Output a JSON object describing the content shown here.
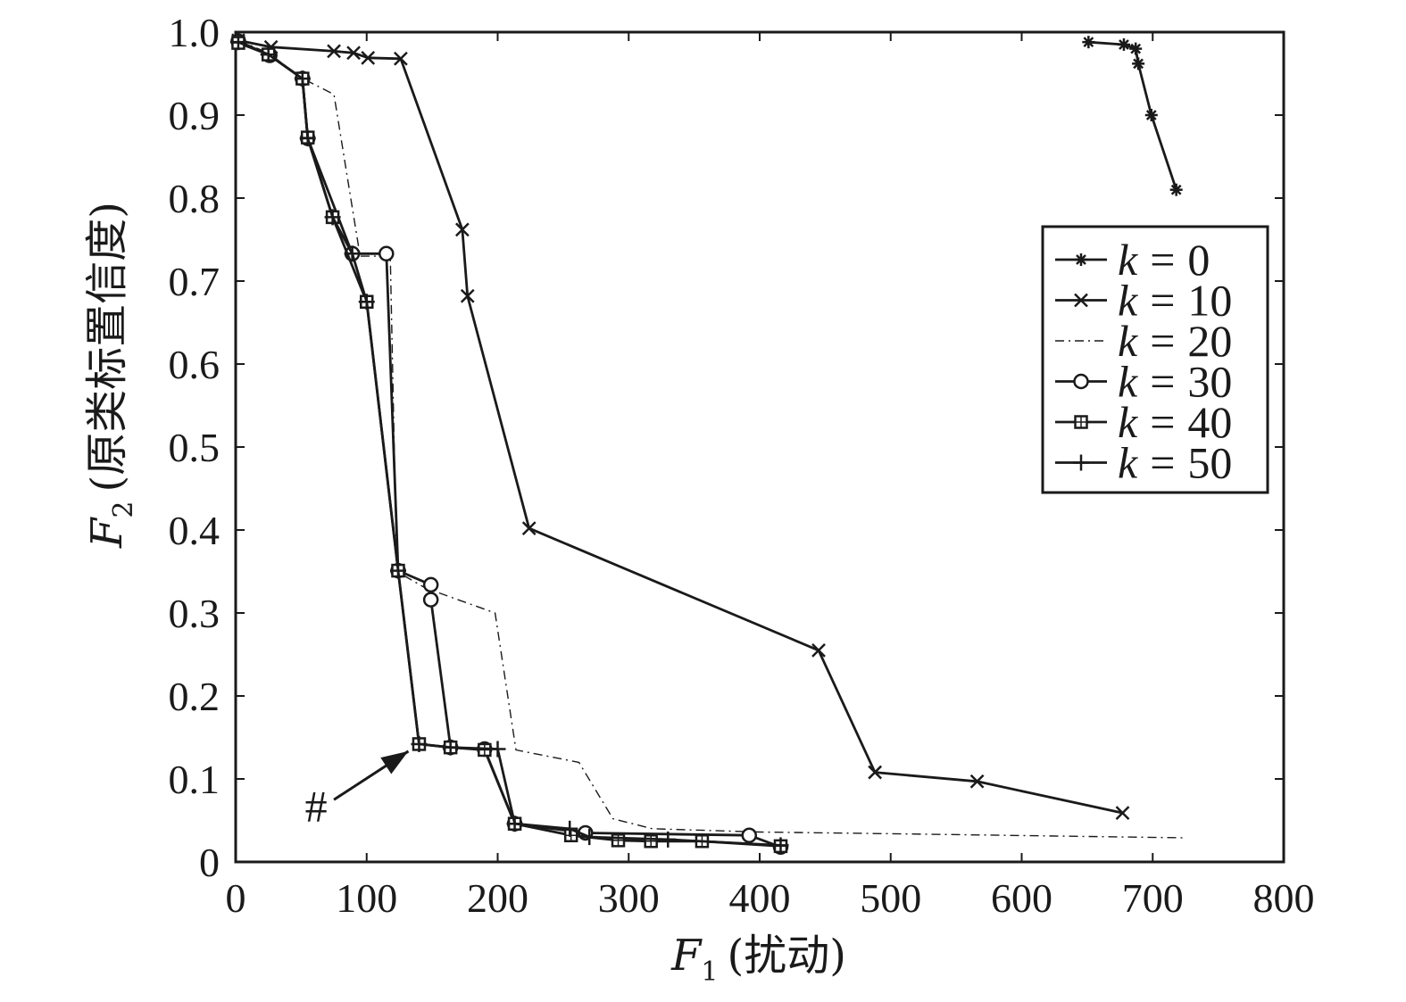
{
  "chart_data": {
    "type": "line",
    "title": "",
    "xlabel": {
      "main": "F",
      "sub": "1",
      "paren": "(扰动)"
    },
    "ylabel": {
      "main": "F",
      "sub": "2",
      "paren": "(原类标置信度)"
    },
    "xlim": [
      0,
      800
    ],
    "ylim": [
      0,
      1.0
    ],
    "xticks": [
      0,
      100,
      200,
      300,
      400,
      500,
      600,
      700,
      800
    ],
    "xtick_labels": [
      "0",
      "100",
      "200",
      "300",
      "400",
      "500",
      "600",
      "700",
      "800"
    ],
    "yticks": [
      0,
      0.1,
      0.2,
      0.3,
      0.4,
      0.5,
      0.6,
      0.7,
      0.8,
      0.9,
      1.0
    ],
    "ytick_labels": [
      "0",
      "0.1",
      "0.2",
      "0.3",
      "0.4",
      "0.5",
      "0.6",
      "0.7",
      "0.8",
      "0.9",
      "1.0"
    ],
    "grid": false,
    "legend_position": "right",
    "annotation": {
      "text": "#",
      "arrow_to": [
        140,
        0.142
      ],
      "arrow_from": [
        75,
        0.075
      ]
    },
    "series": [
      {
        "name": "k = 0",
        "marker": "asterisk",
        "dash": "solid",
        "points": [
          [
            651,
            0.988
          ],
          [
            678,
            0.985
          ],
          [
            687,
            0.98
          ],
          [
            689,
            0.962
          ],
          [
            699,
            0.9
          ],
          [
            718,
            0.81
          ]
        ]
      },
      {
        "name": "k = 10",
        "marker": "x",
        "dash": "solid",
        "points": [
          [
            2,
            0.99
          ],
          [
            27,
            0.982
          ],
          [
            75,
            0.977
          ],
          [
            90,
            0.975
          ],
          [
            101,
            0.969
          ],
          [
            126,
            0.968
          ],
          [
            173,
            0.762
          ],
          [
            177,
            0.682
          ],
          [
            224,
            0.402
          ],
          [
            445,
            0.255
          ],
          [
            488,
            0.108
          ],
          [
            566,
            0.097
          ],
          [
            677,
            0.059
          ]
        ]
      },
      {
        "name": "k = 20",
        "marker": "none",
        "dash": "dashdot",
        "points": [
          [
            2,
            0.99
          ],
          [
            25,
            0.975
          ],
          [
            50,
            0.945
          ],
          [
            75,
            0.925
          ],
          [
            95,
            0.73
          ],
          [
            118,
            0.73
          ],
          [
            123,
            0.35
          ],
          [
            145,
            0.33
          ],
          [
            198,
            0.3
          ],
          [
            214,
            0.135
          ],
          [
            262,
            0.12
          ],
          [
            288,
            0.052
          ],
          [
            318,
            0.04
          ],
          [
            400,
            0.036
          ],
          [
            500,
            0.034
          ],
          [
            725,
            0.029
          ]
        ]
      },
      {
        "name": "k = 30",
        "marker": "circle",
        "dash": "solid",
        "points": [
          [
            2,
            0.989
          ],
          [
            26,
            0.972
          ],
          [
            51,
            0.944
          ],
          [
            55,
            0.872
          ],
          [
            89,
            0.733
          ],
          [
            115,
            0.733
          ],
          [
            124,
            0.351
          ],
          [
            149,
            0.334
          ],
          [
            149,
            0.316
          ],
          [
            164,
            0.138
          ],
          [
            190,
            0.136
          ],
          [
            213,
            0.046
          ],
          [
            267,
            0.035
          ],
          [
            392,
            0.032
          ],
          [
            416,
            0.018
          ]
        ]
      },
      {
        "name": "k = 40",
        "marker": "square",
        "dash": "solid",
        "points": [
          [
            2,
            0.987
          ],
          [
            25,
            0.973
          ],
          [
            51,
            0.944
          ],
          [
            55,
            0.873
          ],
          [
            74,
            0.777
          ],
          [
            100,
            0.675
          ],
          [
            124,
            0.351
          ],
          [
            140,
            0.142
          ],
          [
            164,
            0.138
          ],
          [
            190,
            0.135
          ],
          [
            213,
            0.046
          ],
          [
            256,
            0.032
          ],
          [
            292,
            0.026
          ],
          [
            317,
            0.025
          ],
          [
            356,
            0.025
          ],
          [
            416,
            0.019
          ]
        ]
      },
      {
        "name": "k = 50",
        "marker": "plus",
        "dash": "solid",
        "points": [
          [
            2,
            0.988
          ],
          [
            25,
            0.973
          ],
          [
            51,
            0.944
          ],
          [
            55,
            0.872
          ],
          [
            74,
            0.777
          ],
          [
            89,
            0.733
          ],
          [
            100,
            0.675
          ],
          [
            124,
            0.351
          ],
          [
            140,
            0.142
          ],
          [
            164,
            0.138
          ],
          [
            200,
            0.136
          ],
          [
            213,
            0.046
          ],
          [
            255,
            0.04
          ],
          [
            270,
            0.03
          ],
          [
            330,
            0.027
          ],
          [
            416,
            0.02
          ]
        ]
      }
    ]
  }
}
